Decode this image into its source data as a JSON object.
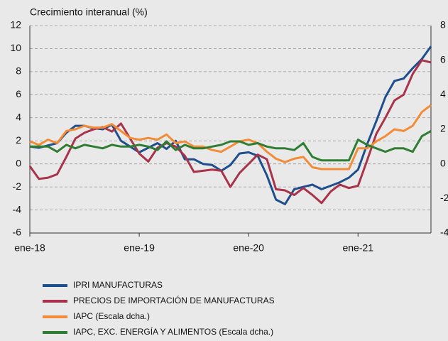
{
  "chart_data": {
    "type": "line",
    "title": "Crecimiento interanual (%)",
    "categories": [
      "ene-18",
      null,
      null,
      null,
      null,
      null,
      null,
      null,
      null,
      null,
      null,
      null,
      "ene-19",
      null,
      null,
      null,
      null,
      null,
      null,
      null,
      null,
      null,
      null,
      null,
      "ene-20",
      null,
      null,
      null,
      null,
      null,
      null,
      null,
      null,
      null,
      null,
      null,
      "ene-21",
      null,
      null,
      null,
      null,
      null,
      null,
      null,
      null
    ],
    "ylim": [
      -6,
      12
    ],
    "yticks": [
      -6,
      -4,
      -2,
      0,
      2,
      4,
      6,
      8,
      10,
      12
    ],
    "y2lim": [
      -4,
      8
    ],
    "y2ticks": [
      -4,
      -2,
      0,
      2,
      4,
      6,
      8
    ],
    "grid": true,
    "series": [
      {
        "name": "IPRI MANUFACTURAS",
        "color": "#1f4e8c",
        "values": [
          1.5,
          1.4,
          1.6,
          1.8,
          2.7,
          3.3,
          3.3,
          3.1,
          3.0,
          3.4,
          2.0,
          1.5,
          1.0,
          1.4,
          1.8,
          1.3,
          2.0,
          0.4,
          0.4,
          0.0,
          -0.1,
          -0.6,
          -0.1,
          0.9,
          1.0,
          0.7,
          -1.0,
          -3.1,
          -3.5,
          -2.2,
          -2.0,
          -1.8,
          -2.2,
          -1.9,
          -1.6,
          -1.2,
          -0.5,
          1.7,
          3.7,
          5.8,
          7.2,
          7.4,
          8.3,
          9.1,
          10.2
        ]
      },
      {
        "name": "PRECIOS DE IMPORTACIÓN DE MANUFACTURAS",
        "color": "#a8334a",
        "values": [
          -0.2,
          -1.3,
          -1.2,
          -0.9,
          0.6,
          2.2,
          2.7,
          3.0,
          3.2,
          2.8,
          3.5,
          2.2,
          0.9,
          0.2,
          1.4,
          1.8,
          1.5,
          0.7,
          -0.7,
          -0.6,
          -0.5,
          -0.6,
          -2.0,
          -0.8,
          0.0,
          0.8,
          0.4,
          -2.2,
          -2.3,
          -2.7,
          -2.1,
          -2.7,
          -3.4,
          -2.4,
          -1.8,
          -2.1,
          -1.9,
          0.3,
          2.6,
          4.0,
          5.5,
          6.0,
          7.8,
          9.0,
          8.8
        ]
      },
      {
        "name": "IAPC (Escala dcha.)",
        "color": "#f28c38",
        "axis": "y2",
        "values": [
          1.3,
          1.1,
          1.4,
          1.2,
          1.9,
          2.0,
          2.2,
          2.1,
          2.1,
          2.3,
          1.9,
          1.5,
          1.4,
          1.5,
          1.4,
          1.7,
          1.2,
          1.3,
          1.0,
          1.0,
          0.8,
          0.7,
          1.0,
          1.3,
          1.4,
          1.2,
          0.7,
          0.3,
          0.1,
          0.3,
          0.4,
          -0.2,
          -0.3,
          -0.3,
          -0.3,
          -0.3,
          0.9,
          0.9,
          1.3,
          1.6,
          2.0,
          1.9,
          2.2,
          3.0,
          3.4
        ]
      },
      {
        "name": "IAPC, EXC. ENERGÍA Y ALIMENTOS (Escala dcha.)",
        "color": "#2e7d32",
        "axis": "y2",
        "values": [
          1.0,
          1.0,
          1.0,
          0.7,
          1.1,
          0.9,
          1.1,
          1.0,
          0.9,
          1.1,
          1.0,
          1.0,
          1.1,
          1.0,
          0.8,
          1.3,
          0.8,
          1.1,
          0.9,
          0.9,
          1.0,
          1.1,
          1.3,
          1.3,
          1.1,
          1.2,
          1.0,
          0.9,
          0.9,
          0.8,
          1.2,
          0.4,
          0.2,
          0.2,
          0.2,
          0.2,
          1.4,
          1.1,
          0.9,
          0.7,
          0.9,
          0.9,
          0.7,
          1.6,
          1.9
        ]
      }
    ]
  }
}
